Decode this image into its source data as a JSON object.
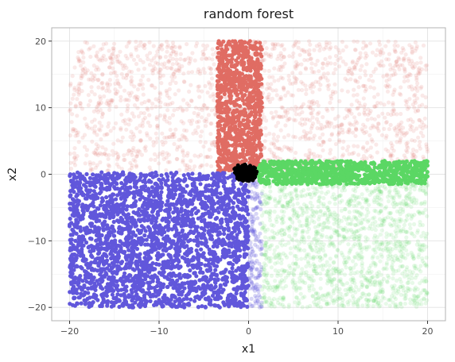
{
  "chart_data": {
    "type": "scatter",
    "title": "random forest",
    "xlabel": "x1",
    "ylabel": "x2",
    "xlim": [
      -22,
      22
    ],
    "ylim": [
      -22,
      22
    ],
    "x_ticks": [
      -20,
      -10,
      0,
      10,
      20
    ],
    "y_ticks": [
      -20,
      -10,
      0,
      10,
      20
    ],
    "x_tick_labels": [
      "−20",
      "−10",
      "0",
      "10",
      "20"
    ],
    "y_tick_labels": [
      "−20",
      "−10",
      "0",
      "10",
      "20"
    ],
    "grid": true,
    "legend": "none",
    "regions": [
      {
        "label": "top-faint",
        "x": [
          -20,
          20
        ],
        "y": [
          0.5,
          20
        ],
        "color": "#e06c63",
        "opacity": 0.15,
        "marker": "point"
      },
      {
        "label": "top-band",
        "x": [
          -3.5,
          1.5
        ],
        "y": [
          0.5,
          20
        ],
        "color": "#e06c63",
        "opacity": 1.0,
        "marker": "point"
      },
      {
        "label": "left-bottom-solid",
        "x": [
          -20,
          0
        ],
        "y": [
          -20,
          0.3
        ],
        "color": "#6157db",
        "opacity": 1.0,
        "marker": "point"
      },
      {
        "label": "left-bottom-faint-strip",
        "x": [
          0,
          1.5
        ],
        "y": [
          -20,
          0
        ],
        "color": "#6157db",
        "opacity": 0.25,
        "marker": "point"
      },
      {
        "label": "right-bottom-faint",
        "x": [
          1.5,
          20
        ],
        "y": [
          -20,
          -0.5
        ],
        "color": "#5bd764",
        "opacity": 0.15,
        "marker": "point"
      },
      {
        "label": "right-band",
        "x": [
          1,
          20
        ],
        "y": [
          -1.5,
          2
        ],
        "color": "#5bd764",
        "opacity": 1.0,
        "marker": "point"
      },
      {
        "label": "center-cluster",
        "x": [
          -4,
          3.5
        ],
        "y": [
          -4,
          5
        ],
        "color": "#000000",
        "opacity": 1.0,
        "marker": "point"
      }
    ],
    "colors": {
      "red": "#e06c63",
      "blue": "#6157db",
      "green": "#5bd764",
      "black": "#000000",
      "panel_border": "#b3b3b3",
      "grid": "#e5e5e5"
    }
  }
}
